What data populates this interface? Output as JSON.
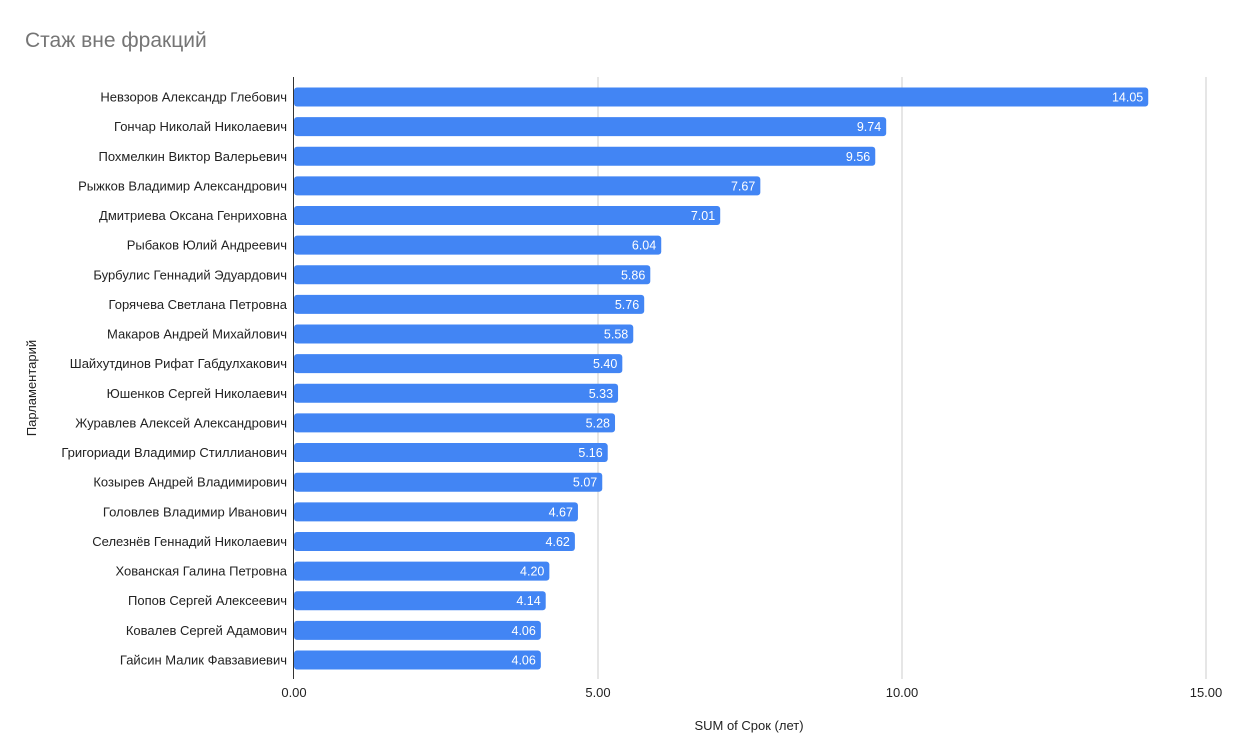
{
  "chart_data": {
    "type": "bar",
    "orientation": "horizontal",
    "title": "Стаж вне фракций",
    "xlabel": "SUM of Срок (лет)",
    "ylabel": "Парламентарий",
    "xlim": [
      0,
      15
    ],
    "x_ticks": [
      0,
      5,
      10,
      15
    ],
    "x_tick_labels": [
      "0.00",
      "5.00",
      "10.00",
      "15.00"
    ],
    "grid": true,
    "bar_color": "#4285f4",
    "categories": [
      "Невзоров Александр Глебович",
      "Гончар Николай Николаевич",
      "Похмелкин Виктор Валерьевич",
      "Рыжков Владимир Александрович",
      "Дмитриева Оксана Генриховна",
      "Рыбаков Юлий Андреевич",
      "Бурбулис Геннадий Эдуардович",
      "Горячева Светлана Петровна",
      "Макаров Андрей Михайлович",
      "Шайхутдинов Рифат Габдулхакович",
      "Юшенков Сергей Николаевич",
      "Журавлев Алексей Александрович",
      "Григориади Владимир Стиллианович",
      "Козырев Андрей Владимирович",
      "Головлев Владимир Иванович",
      "Селезнёв Геннадий Николаевич",
      "Хованская Галина Петровна",
      "Попов Сергей Алексеевич",
      "Ковалев Сергей Адамович",
      "Гайсин Малик Фавзавиевич"
    ],
    "values": [
      14.05,
      9.74,
      9.56,
      7.67,
      7.01,
      6.04,
      5.86,
      5.76,
      5.58,
      5.4,
      5.33,
      5.28,
      5.16,
      5.07,
      4.67,
      4.62,
      4.2,
      4.14,
      4.06,
      4.06
    ],
    "value_labels": [
      "14.05",
      "9.74",
      "9.56",
      "7.67",
      "7.01",
      "6.04",
      "5.86",
      "5.76",
      "5.58",
      "5.40",
      "5.33",
      "5.28",
      "5.16",
      "5.07",
      "4.67",
      "4.62",
      "4.20",
      "4.14",
      "4.06",
      "4.06"
    ]
  }
}
